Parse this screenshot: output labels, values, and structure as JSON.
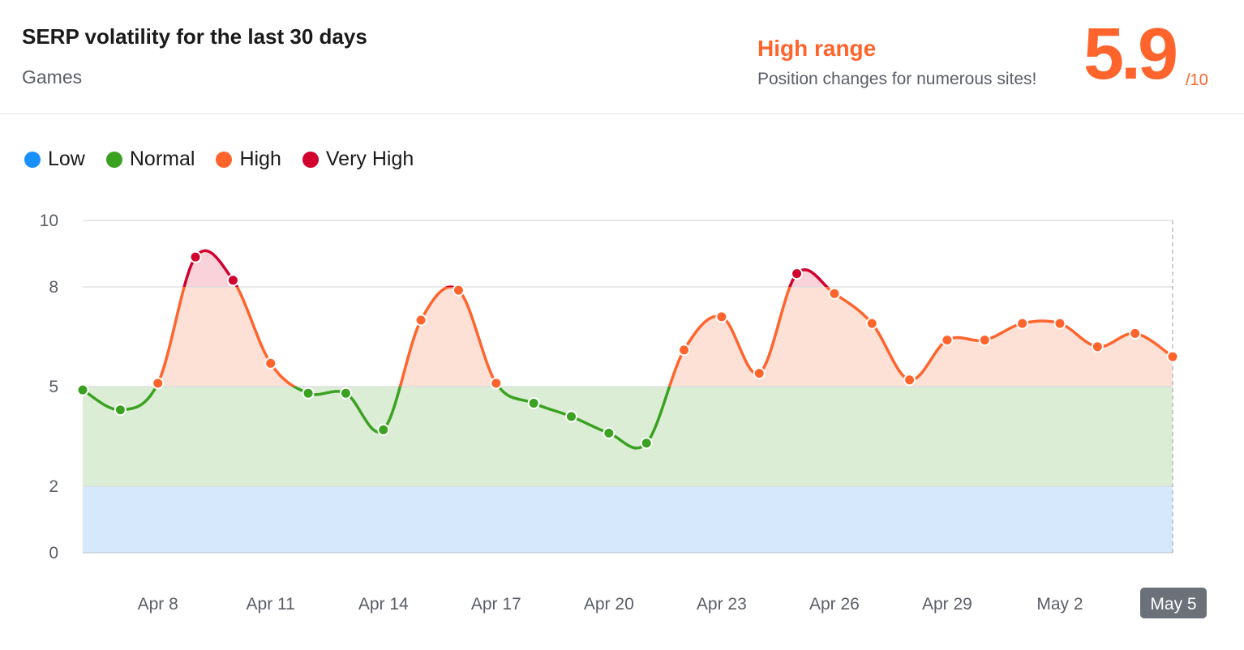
{
  "header": {
    "title": "SERP volatility for the last 30 days",
    "subtitle": "Games",
    "range_title": "High range",
    "range_desc": "Position changes for numerous sites!",
    "score": "5.9",
    "score_max": "/10"
  },
  "legend": [
    {
      "label": "Low",
      "color": "#1a90ff"
    },
    {
      "label": "Normal",
      "color": "#3ba221"
    },
    {
      "label": "High",
      "color": "#ff642d"
    },
    {
      "label": "Very High",
      "color": "#d1002f"
    }
  ],
  "colors": {
    "low_band": "#d5e8fc",
    "normal_band": "#dbedd5",
    "high_band": "#fde0d6",
    "very_high_band": "#f9d3d9",
    "grid": "#d9dce1",
    "selected_tag_bg": "#6b7079",
    "selected_tag_text": "#ffffff"
  },
  "chart_data": {
    "type": "area",
    "title": "SERP volatility for the last 30 days",
    "ylim": [
      0,
      10
    ],
    "yticks": [
      "0",
      "2",
      "5",
      "8",
      "10"
    ],
    "thresholds": {
      "low_max": 2,
      "normal_max": 5,
      "high_max": 8
    },
    "x": [
      "Apr 6",
      "Apr 7",
      "Apr 8",
      "Apr 9",
      "Apr 10",
      "Apr 11",
      "Apr 12",
      "Apr 13",
      "Apr 14",
      "Apr 15",
      "Apr 16",
      "Apr 17",
      "Apr 18",
      "Apr 19",
      "Apr 20",
      "Apr 21",
      "Apr 22",
      "Apr 23",
      "Apr 24",
      "Apr 25",
      "Apr 26",
      "Apr 27",
      "Apr 28",
      "Apr 29",
      "Apr 30",
      "May 1",
      "May 2",
      "May 3",
      "May 4",
      "May 5"
    ],
    "values": [
      4.9,
      4.3,
      5.1,
      8.9,
      8.2,
      5.7,
      4.8,
      4.8,
      3.7,
      7.0,
      7.9,
      5.1,
      4.5,
      4.1,
      3.6,
      3.3,
      6.1,
      7.1,
      5.4,
      8.4,
      7.8,
      6.9,
      5.2,
      6.4,
      6.4,
      6.9,
      6.9,
      6.2,
      6.6,
      5.9
    ],
    "xtick_labels": [
      "Apr 8",
      "Apr 11",
      "Apr 14",
      "Apr 17",
      "Apr 20",
      "Apr 23",
      "Apr 26",
      "Apr 29",
      "May 2",
      "May 5"
    ],
    "selected_label": "May 5"
  }
}
